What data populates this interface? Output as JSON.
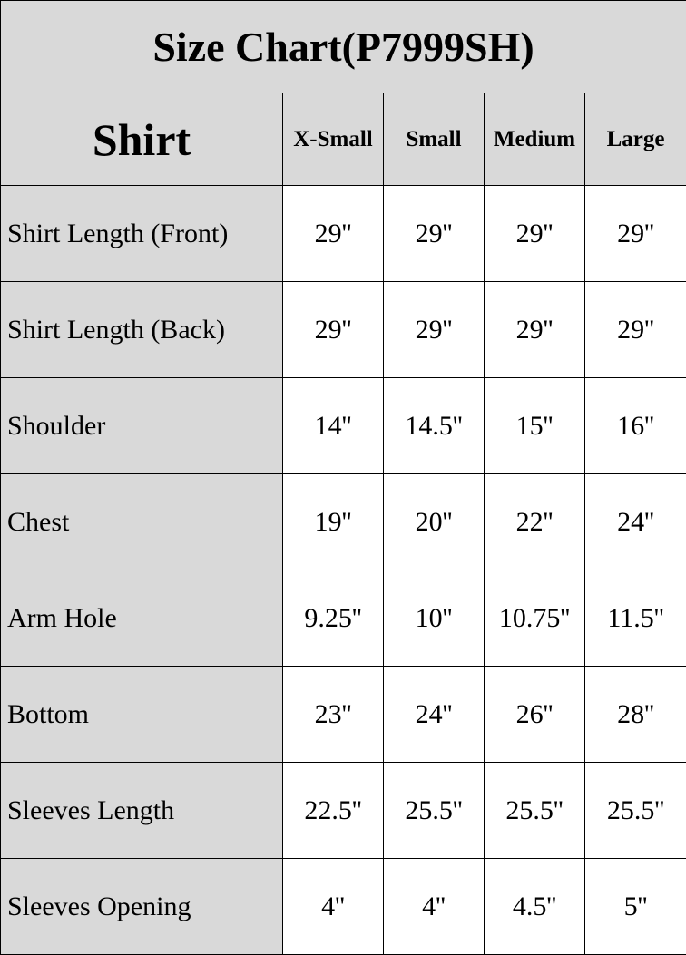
{
  "title": "Size Chart(P7999SH)",
  "header": {
    "section": "Shirt",
    "sizes": [
      "X-Small",
      "Small",
      "Medium",
      "Large"
    ]
  },
  "rows": [
    {
      "label": "Shirt Length (Front)",
      "values": [
        "29''",
        "29''",
        "29''",
        "29''"
      ]
    },
    {
      "label": "Shirt Length (Back)",
      "values": [
        "29''",
        "29''",
        "29''",
        "29''"
      ]
    },
    {
      "label": "Shoulder",
      "values": [
        "14''",
        "14.5''",
        "15''",
        "16''"
      ]
    },
    {
      "label": "Chest",
      "values": [
        "19''",
        "20''",
        "22''",
        "24''"
      ]
    },
    {
      "label": "Arm Hole",
      "values": [
        "9.25''",
        "10''",
        "10.75''",
        "11.5''"
      ]
    },
    {
      "label": "Bottom",
      "values": [
        "23''",
        "24''",
        "26''",
        "28''"
      ]
    },
    {
      "label": "Sleeves Length",
      "values": [
        "22.5''",
        "25.5''",
        "25.5''",
        "25.5''"
      ]
    },
    {
      "label": "Sleeves Opening",
      "values": [
        "4''",
        "4''",
        "4.5''",
        "5''"
      ]
    }
  ],
  "colors": {
    "header_bg": "#d9d9d9",
    "cell_bg": "#ffffff",
    "border": "#000000"
  }
}
